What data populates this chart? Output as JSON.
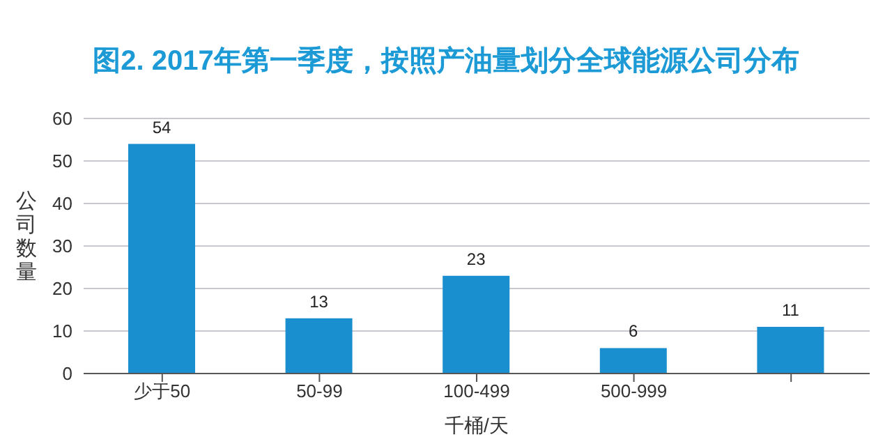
{
  "chart_data": {
    "type": "bar",
    "title": "图2. 2017年第一季度，按照产油量划分全球能源公司分布",
    "xlabel": "千桶/天",
    "ylabel": "公司数量",
    "categories": [
      "少于50",
      "50-99",
      "100-499",
      "500-999",
      null
    ],
    "values": [
      54,
      13,
      23,
      6,
      11
    ],
    "color": "#1a8fd0",
    "data_labels": true,
    "ylim": [
      0,
      60
    ],
    "yticks": [
      0,
      10,
      20,
      30,
      40,
      50,
      60
    ],
    "grid": "y"
  }
}
